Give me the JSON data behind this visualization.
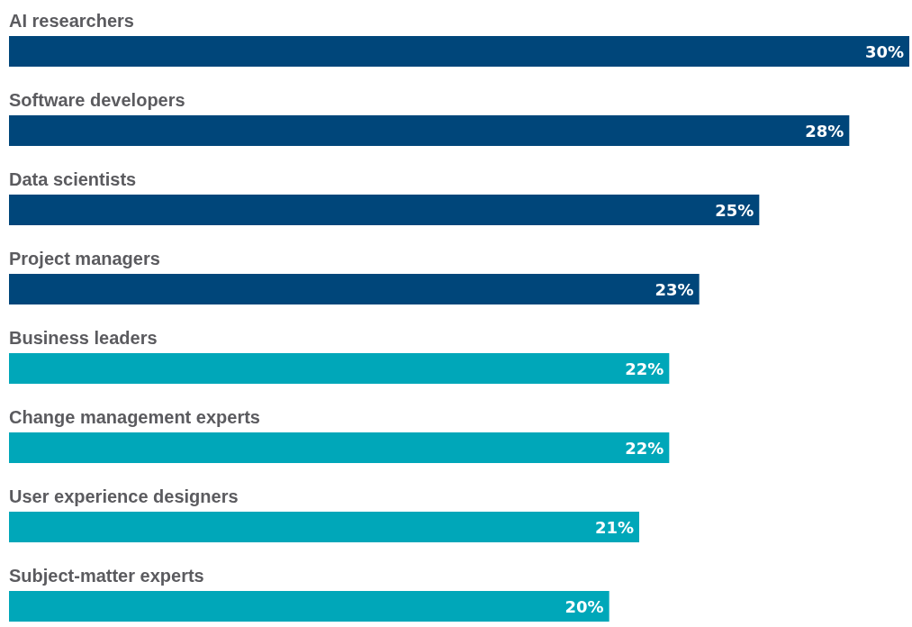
{
  "chart_data": {
    "type": "bar",
    "orientation": "horizontal",
    "categories": [
      "AI researchers",
      "Software developers",
      "Data scientists",
      "Project managers",
      "Business leaders",
      "Change management experts",
      "User experience designers",
      "Subject-matter experts"
    ],
    "values": [
      30,
      28,
      25,
      23,
      22,
      22,
      21,
      20
    ],
    "value_labels": [
      "30%",
      "28%",
      "25%",
      "23%",
      "22%",
      "22%",
      "21%",
      "20%"
    ],
    "colors": [
      "#00467a",
      "#00467a",
      "#00467a",
      "#00467a",
      "#00a7b9",
      "#00a7b9",
      "#00a7b9",
      "#00a7b9"
    ]
  }
}
